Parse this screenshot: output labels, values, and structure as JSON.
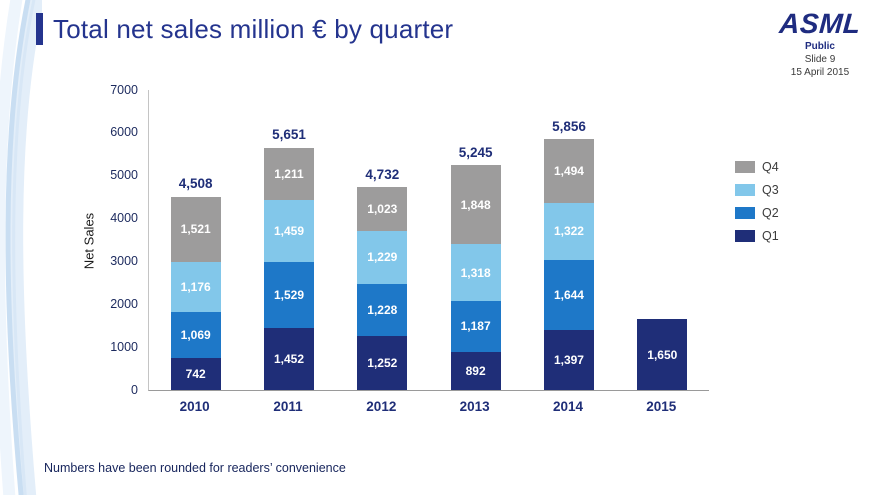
{
  "slide": {
    "title": "Total net sales million € by quarter",
    "footer_note": "Numbers have been rounded for readers’ convenience"
  },
  "brand": {
    "logo": "ASML",
    "classification": "Public",
    "slide_number": "Slide 9",
    "date": "15 April 2015"
  },
  "chart_data": {
    "type": "bar",
    "stacked": true,
    "title": "Total net sales million € by quarter",
    "ylabel": "Net Sales",
    "xlabel": "",
    "ylim": [
      0,
      7000
    ],
    "yticks": [
      0,
      1000,
      2000,
      3000,
      4000,
      5000,
      6000,
      7000
    ],
    "grid": false,
    "legend_position": "right",
    "categories": [
      "2010",
      "2011",
      "2012",
      "2013",
      "2014",
      "2015"
    ],
    "series": [
      {
        "name": "Q1",
        "color": "#1f2e78",
        "values": [
          742,
          1452,
          1252,
          892,
          1397,
          1650
        ],
        "labels": [
          "742",
          "1,452",
          "1,252",
          "892",
          "1,397",
          "1,650"
        ]
      },
      {
        "name": "Q2",
        "color": "#1e78c8",
        "values": [
          1069,
          1529,
          1228,
          1187,
          1644,
          null
        ],
        "labels": [
          "1,069",
          "1,529",
          "1,228",
          "1,187",
          "1,644",
          null
        ]
      },
      {
        "name": "Q3",
        "color": "#82c7ea",
        "values": [
          1176,
          1459,
          1229,
          1318,
          1322,
          null
        ],
        "labels": [
          "1,176",
          "1,459",
          "1,229",
          "1,318",
          "1,322",
          null
        ]
      },
      {
        "name": "Q4",
        "color": "#9d9c9c",
        "values": [
          1521,
          1211,
          1023,
          1848,
          1494,
          null
        ],
        "labels": [
          "1,521",
          "1,211",
          "1,023",
          "1,848",
          "1,494",
          null
        ]
      }
    ],
    "totals": [
      4508,
      5651,
      4732,
      5245,
      5856,
      null
    ],
    "totals_labels": [
      "4,508",
      "5,651",
      "4,732",
      "5,245",
      "5,856",
      null
    ],
    "legend": [
      "Q4",
      "Q3",
      "Q2",
      "Q1"
    ]
  }
}
